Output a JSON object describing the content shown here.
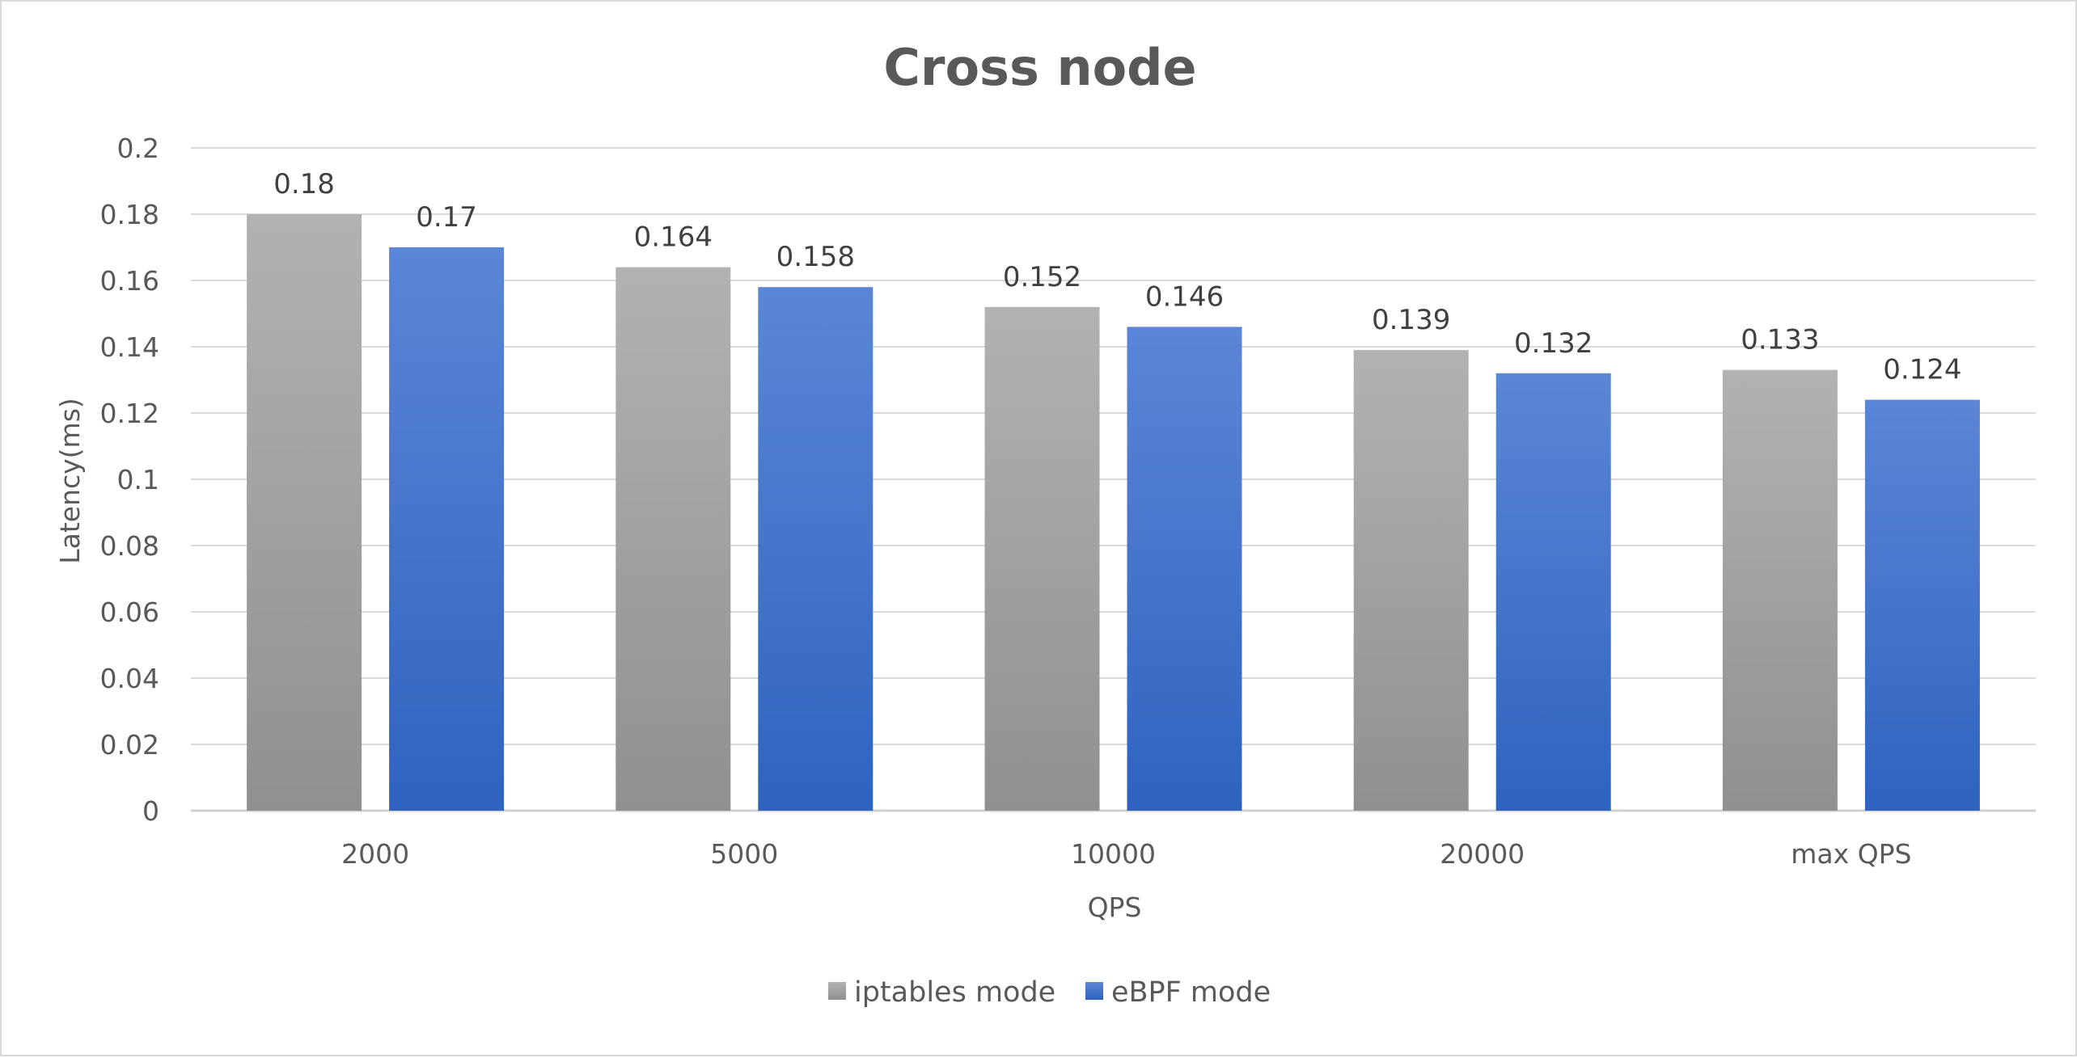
{
  "chart_data": {
    "type": "bar",
    "title": "Cross node",
    "xlabel": "QPS",
    "ylabel": "Latency(ms)",
    "categories": [
      "2000",
      "5000",
      "10000",
      "20000",
      "max QPS"
    ],
    "series": [
      {
        "name": "iptables mode",
        "color": "#a6a6a6",
        "values": [
          0.18,
          0.164,
          0.152,
          0.139,
          0.133
        ],
        "labels": [
          "0.18",
          "0.164",
          "0.152",
          "0.139",
          "0.133"
        ]
      },
      {
        "name": "eBPF mode",
        "color": "#4472c4",
        "values": [
          0.17,
          0.158,
          0.146,
          0.132,
          0.124
        ],
        "labels": [
          "0.17",
          "0.158",
          "0.146",
          "0.132",
          "0.124"
        ]
      }
    ],
    "ylim": [
      0,
      0.2
    ],
    "yticks": [
      "0",
      "0.02",
      "0.04",
      "0.06",
      "0.08",
      "0.1",
      "0.12",
      "0.14",
      "0.16",
      "0.18",
      "0.2"
    ],
    "grid": true,
    "legend_position": "bottom"
  }
}
